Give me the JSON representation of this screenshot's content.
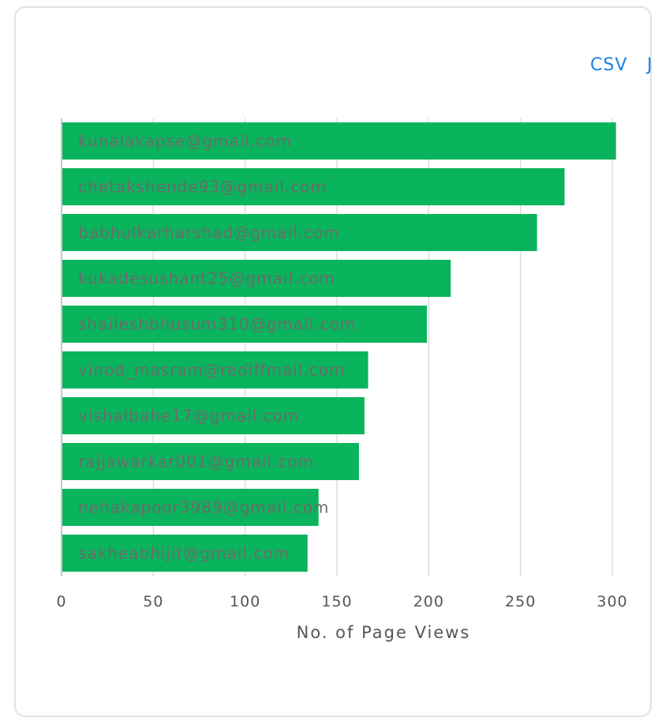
{
  "export": {
    "csv_label": "CSV",
    "json_label": "J"
  },
  "colors": {
    "bar": "#0ab45c",
    "label": "#6b6b6b",
    "grid": "#dddddd",
    "link": "#1a7fe8"
  },
  "chart_data": {
    "type": "bar",
    "orientation": "horizontal",
    "categories": [
      "kunalakapse@gmail.com",
      "chetakshende93@gmail.com",
      "babhulkarharshad@gmail.com",
      "kukadesushant25@gmail.com",
      "shaileshbhusum310@gmail.com",
      "vinod_masram@rediffmail.com",
      "vishalbahe17@gmail.com",
      "rajjawarkar001@gmail.com",
      "nehakapoor3989@gmail.com",
      "sakheabhijit@gmail.com"
    ],
    "values": [
      302,
      274,
      259,
      212,
      199,
      167,
      165,
      162,
      140,
      134
    ],
    "xlabel": "No. of Page Views",
    "ylabel": "",
    "xlim": [
      0,
      300
    ],
    "xticks": [
      "0",
      "50",
      "100",
      "150",
      "200",
      "250",
      "300"
    ],
    "grid": true,
    "legend": "none"
  }
}
